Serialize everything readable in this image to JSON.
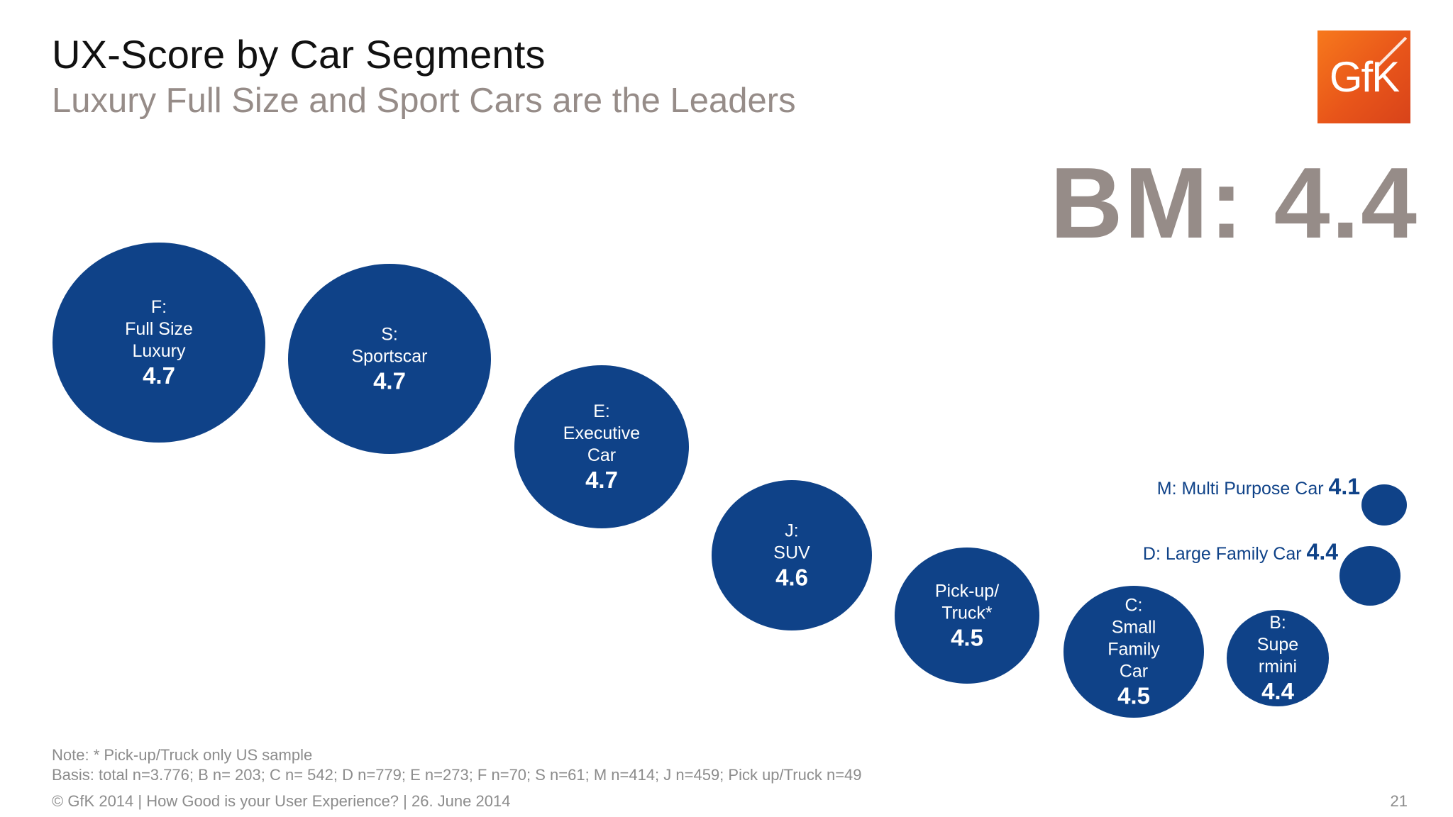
{
  "header": {
    "title": "UX-Score by Car Segments",
    "subtitle": "Luxury Full Size and Sport Cars are the Leaders"
  },
  "logo": {
    "text": "GfK",
    "color": "#f06a1c"
  },
  "benchmark": {
    "text": "BM: 4.4"
  },
  "colors": {
    "bubble": "#0f4288",
    "benchmark": "#968c88",
    "footer_text": "#8c8c8c"
  },
  "chart_data": {
    "type": "bubble",
    "title": "UX-Score by Car Segments",
    "subtitle": "Luxury Full Size and Sport Cars are the Leaders",
    "benchmark": 4.4,
    "series": [
      {
        "code": "F",
        "label_lines": [
          "F:",
          "Full Size",
          "Luxury"
        ],
        "value": 4.7,
        "value_label": "4.7",
        "n": 70
      },
      {
        "code": "S",
        "label_lines": [
          "S:",
          "Sportscar"
        ],
        "value": 4.7,
        "value_label": "4.7",
        "n": 61
      },
      {
        "code": "E",
        "label_lines": [
          "E:",
          "Executive",
          "Car"
        ],
        "value": 4.7,
        "value_label": "4.7",
        "n": 273
      },
      {
        "code": "J",
        "label_lines": [
          "J:",
          "SUV"
        ],
        "value": 4.6,
        "value_label": "4.6",
        "n": 459
      },
      {
        "code": "PT",
        "label_lines": [
          "Pick-up/",
          "Truck*"
        ],
        "value": 4.5,
        "value_label": "4.5",
        "n": 49
      },
      {
        "code": "C",
        "label_lines": [
          "C:",
          "Small",
          "Family",
          "Car"
        ],
        "value": 4.5,
        "value_label": "4.5",
        "n": 542
      },
      {
        "code": "B",
        "label_lines": [
          "B:",
          "Supe",
          "rmini"
        ],
        "value": 4.4,
        "value_label": "4.4",
        "n": 203
      },
      {
        "code": "D",
        "label_lines": [],
        "callout": "D: Large Family Car",
        "value": 4.4,
        "value_label": "4.4",
        "n": 779
      },
      {
        "code": "M",
        "label_lines": [],
        "callout": "M: Multi Purpose Car",
        "value": 4.1,
        "value_label": "4.1",
        "n": 414
      }
    ]
  },
  "callouts": {
    "m": {
      "label": "M: Multi Purpose Car",
      "value": "4.1"
    },
    "d": {
      "label": "D: Large Family Car",
      "value": "4.4"
    }
  },
  "notes": {
    "note": "Note: * Pick-up/Truck only US sample",
    "basis": "Basis: total n=3.776; B n= 203; C n= 542; D n=779; E n=273; F n=70; S n=61; M n=414; J n=459; Pick up/Truck n=49"
  },
  "footer": {
    "copyright": "© GfK 2014 | How Good is your User Experience? | 26. June 2014",
    "page_number": "21"
  }
}
